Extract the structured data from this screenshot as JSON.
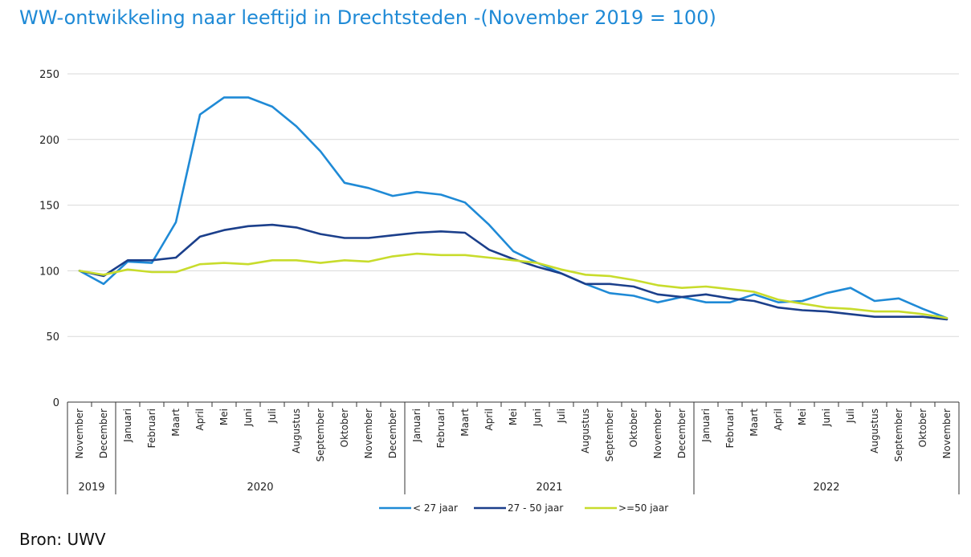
{
  "title": "WW-ontwikkeling naar leeftijd in Drechtsteden  -(November 2019 = 100)",
  "source": "Bron: UWV",
  "chart_data": {
    "type": "line",
    "title": "WW-ontwikkeling naar leeftijd in Drechtsteden  -(November 2019 = 100)",
    "categories": [
      "November",
      "December",
      "Januari",
      "Februari",
      "Maart",
      "April",
      "Mei",
      "Juni",
      "Juli",
      "Augustus",
      "September",
      "Oktober",
      "November",
      "December",
      "Januari",
      "Februari",
      "Maart",
      "April",
      "Mei",
      "Juni",
      "Juli",
      "Augustus",
      "September",
      "Oktober",
      "November",
      "December",
      "Januari",
      "Februari",
      "Maart",
      "April",
      "Mei",
      "Juni",
      "Juli",
      "Augustus",
      "September",
      "Oktober",
      "November"
    ],
    "year_groups": [
      {
        "label": "2019",
        "start": 0,
        "end": 1
      },
      {
        "label": "2020",
        "start": 2,
        "end": 13
      },
      {
        "label": "2021",
        "start": 14,
        "end": 25
      },
      {
        "label": "2022",
        "start": 26,
        "end": 36
      }
    ],
    "ylim": [
      0,
      250
    ],
    "yticks": [
      0,
      50,
      100,
      150,
      200,
      250
    ],
    "grid": true,
    "legend_position": "bottom",
    "series": [
      {
        "name": "< 27 jaar",
        "color": "#1f8ad6",
        "values": [
          100,
          90,
          107,
          106,
          137,
          219,
          232,
          232,
          225,
          210,
          191,
          167,
          163,
          157,
          160,
          158,
          152,
          135,
          115,
          106,
          98,
          90,
          83,
          81,
          76,
          80,
          76,
          76,
          82,
          76,
          77,
          83,
          87,
          77,
          79,
          71,
          64
        ]
      },
      {
        "name": "27 - 50 jaar",
        "color": "#1b3f8b",
        "values": [
          100,
          96,
          108,
          108,
          110,
          126,
          131,
          134,
          135,
          133,
          128,
          125,
          125,
          127,
          129,
          130,
          129,
          116,
          109,
          103,
          98,
          90,
          90,
          88,
          82,
          80,
          82,
          79,
          77,
          72,
          70,
          69,
          67,
          65,
          65,
          65,
          63
        ]
      },
      {
        "name": ">=50 jaar",
        "color": "#c8dc2c",
        "values": [
          100,
          97,
          101,
          99,
          99,
          105,
          106,
          105,
          108,
          108,
          106,
          108,
          107,
          111,
          113,
          112,
          112,
          110,
          108,
          106,
          101,
          97,
          96,
          93,
          89,
          87,
          88,
          86,
          84,
          78,
          75,
          72,
          71,
          69,
          69,
          67,
          64
        ]
      }
    ]
  }
}
